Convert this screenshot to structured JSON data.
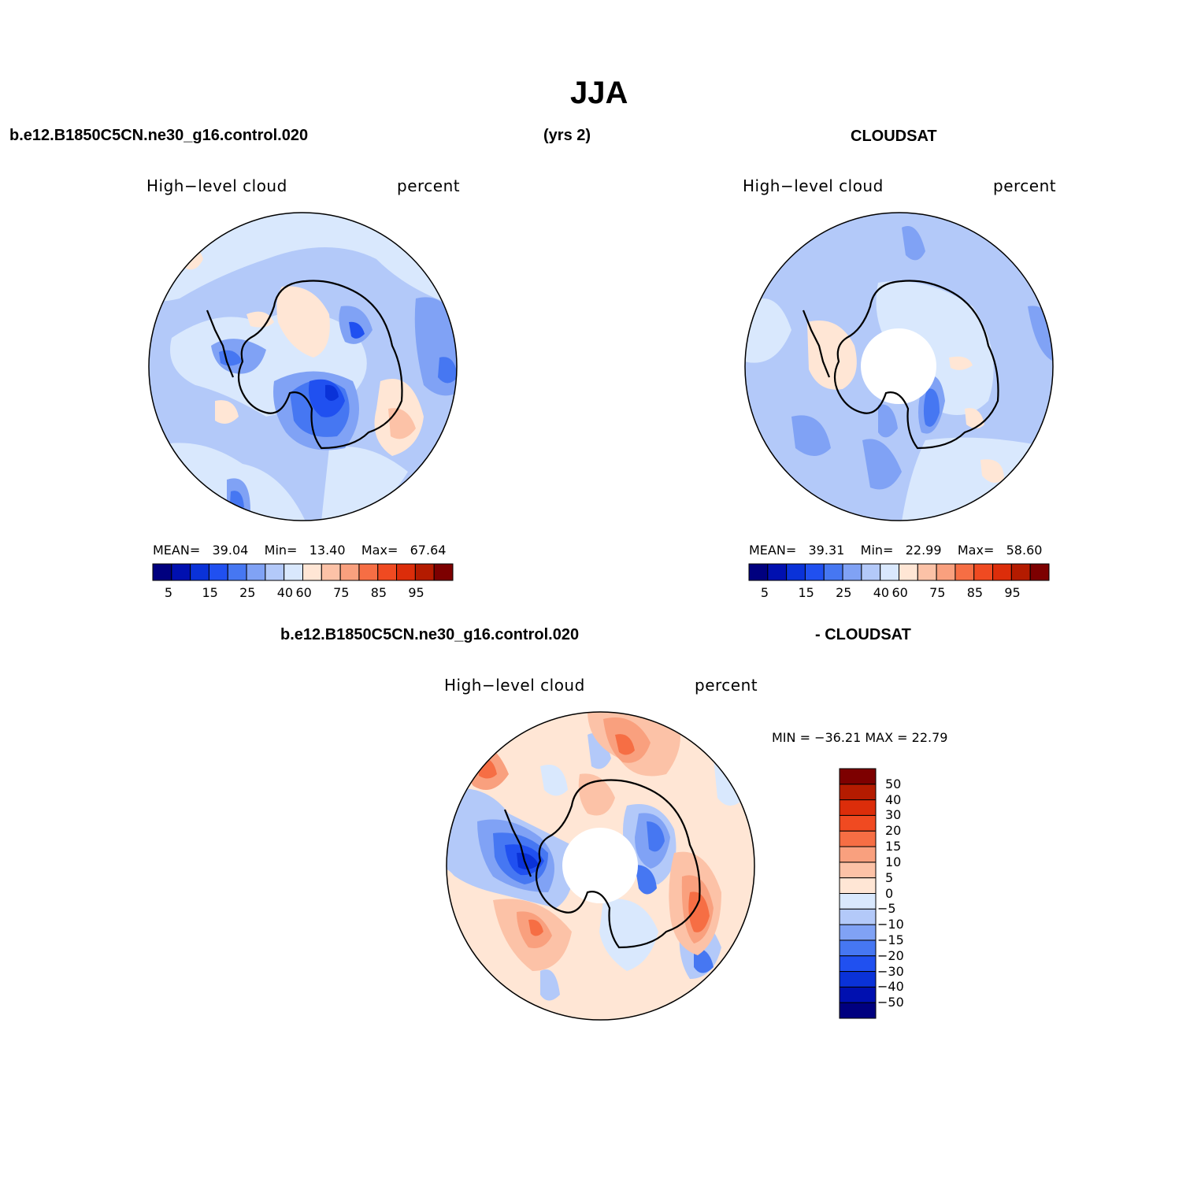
{
  "figure": {
    "title": "JJA",
    "top_left_header": "b.e12.B1850C5CN.ne30_g16.control.020",
    "top_mid_header": "(yrs 2)",
    "top_right_header": "CLOUDSAT",
    "bottom_left_header": "b.e12.B1850C5CN.ne30_g16.control.020",
    "bottom_right_header": "- CLOUDSAT"
  },
  "panels": {
    "model": {
      "left_label": "High−level cloud",
      "right_label": "percent",
      "mean_label": "MEAN=",
      "mean": "39.04",
      "min_label": "Min=",
      "min": "13.40",
      "max_label": "Max=",
      "max": "67.64"
    },
    "obs": {
      "left_label": "High−level cloud",
      "right_label": "percent",
      "mean_label": "MEAN=",
      "mean": "39.31",
      "min_label": "Min=",
      "min": "22.99",
      "max_label": "Max=",
      "max": "58.60"
    },
    "diff": {
      "left_label": "High−level cloud",
      "right_label": "percent",
      "minmax_text": "MIN = −36.21  MAX =   22.79"
    }
  },
  "colorbar_abs": {
    "colors": [
      "#00007f",
      "#0010b0",
      "#0a32d8",
      "#2050f0",
      "#4677f2",
      "#80a2f5",
      "#b3c9f9",
      "#d9e8fd",
      "#ffe6d5",
      "#fcc2a7",
      "#f9a07e",
      "#f66e44",
      "#f04a21",
      "#dc2d0a",
      "#b41b00",
      "#7d0000"
    ],
    "labels": [
      "5",
      "15",
      "25",
      "40",
      "60",
      "75",
      "85",
      "95"
    ]
  },
  "colorbar_diff": {
    "colors": [
      "#7d0000",
      "#b41b00",
      "#dc2d0a",
      "#f04a21",
      "#f66e44",
      "#f9a07e",
      "#fcc2a7",
      "#ffe6d5",
      "#d9e8fd",
      "#b3c9f9",
      "#80a2f5",
      "#4677f2",
      "#2050f0",
      "#0a32d8",
      "#0010b0",
      "#00007f"
    ],
    "labels": [
      "50",
      "40",
      "30",
      "20",
      "15",
      "10",
      "5",
      "0",
      "−5",
      "−10",
      "−15",
      "−20",
      "−30",
      "−40",
      "−50"
    ]
  }
}
